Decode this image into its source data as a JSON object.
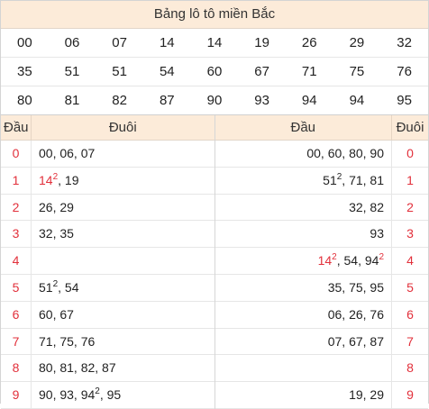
{
  "title": "Bảng lô tô miền Bắc",
  "numbers": [
    [
      {
        "v": "00"
      },
      {
        "v": "06"
      },
      {
        "v": "07"
      },
      {
        "v": "14",
        "red": true
      },
      {
        "v": "14"
      },
      {
        "v": "19"
      },
      {
        "v": "26"
      },
      {
        "v": "29"
      },
      {
        "v": "32"
      }
    ],
    [
      {
        "v": "35"
      },
      {
        "v": "51"
      },
      {
        "v": "51"
      },
      {
        "v": "54"
      },
      {
        "v": "60"
      },
      {
        "v": "67"
      },
      {
        "v": "71"
      },
      {
        "v": "75"
      },
      {
        "v": "76"
      }
    ],
    [
      {
        "v": "80"
      },
      {
        "v": "81"
      },
      {
        "v": "82"
      },
      {
        "v": "87"
      },
      {
        "v": "90"
      },
      {
        "v": "93"
      },
      {
        "v": "94"
      },
      {
        "v": "94"
      },
      {
        "v": "95"
      }
    ]
  ],
  "left_header": {
    "dau": "Đầu",
    "duoi": "Đuôi"
  },
  "right_header": {
    "dau": "Đầu",
    "duoi": "Đuôi"
  },
  "left_rows": [
    {
      "d": "0",
      "parts": [
        {
          "t": "00, 06, 07"
        }
      ]
    },
    {
      "d": "1",
      "parts": [
        {
          "t": "14",
          "sup": "2",
          "red": true
        },
        {
          "t": ", 19"
        }
      ]
    },
    {
      "d": "2",
      "parts": [
        {
          "t": "26, 29"
        }
      ]
    },
    {
      "d": "3",
      "parts": [
        {
          "t": "32, 35"
        }
      ]
    },
    {
      "d": "4",
      "parts": []
    },
    {
      "d": "5",
      "parts": [
        {
          "t": "51",
          "sup": "2"
        },
        {
          "t": ", 54"
        }
      ]
    },
    {
      "d": "6",
      "parts": [
        {
          "t": "60, 67"
        }
      ]
    },
    {
      "d": "7",
      "parts": [
        {
          "t": "71, 75, 76"
        }
      ]
    },
    {
      "d": "8",
      "parts": [
        {
          "t": "80, 81, 82, 87"
        }
      ]
    },
    {
      "d": "9",
      "parts": [
        {
          "t": "90, 93, 94",
          "sup": "2"
        },
        {
          "t": ", 95"
        }
      ]
    }
  ],
  "right_rows": [
    {
      "d": "0",
      "parts": [
        {
          "t": "00, 60, 80, 90"
        }
      ]
    },
    {
      "d": "1",
      "parts": [
        {
          "t": "51",
          "sup": "2"
        },
        {
          "t": ", 71, 81"
        }
      ]
    },
    {
      "d": "2",
      "parts": [
        {
          "t": "32, 82"
        }
      ]
    },
    {
      "d": "3",
      "parts": [
        {
          "t": "93"
        }
      ]
    },
    {
      "d": "4",
      "parts": [
        {
          "t": "14",
          "sup": "2",
          "red": true
        },
        {
          "t": ", 54, 94"
        },
        {
          "t": "",
          "sup": "2"
        }
      ]
    },
    {
      "d": "5",
      "parts": [
        {
          "t": "35, 75, 95"
        }
      ]
    },
    {
      "d": "6",
      "parts": [
        {
          "t": "06, 26, 76"
        }
      ]
    },
    {
      "d": "7",
      "parts": [
        {
          "t": "07, 67, 87"
        }
      ]
    },
    {
      "d": "8",
      "parts": []
    },
    {
      "d": "9",
      "parts": [
        {
          "t": "19, 29"
        }
      ]
    }
  ],
  "colors": {
    "accent_red": "#e2303b",
    "header_bg": "#fcebd9"
  }
}
